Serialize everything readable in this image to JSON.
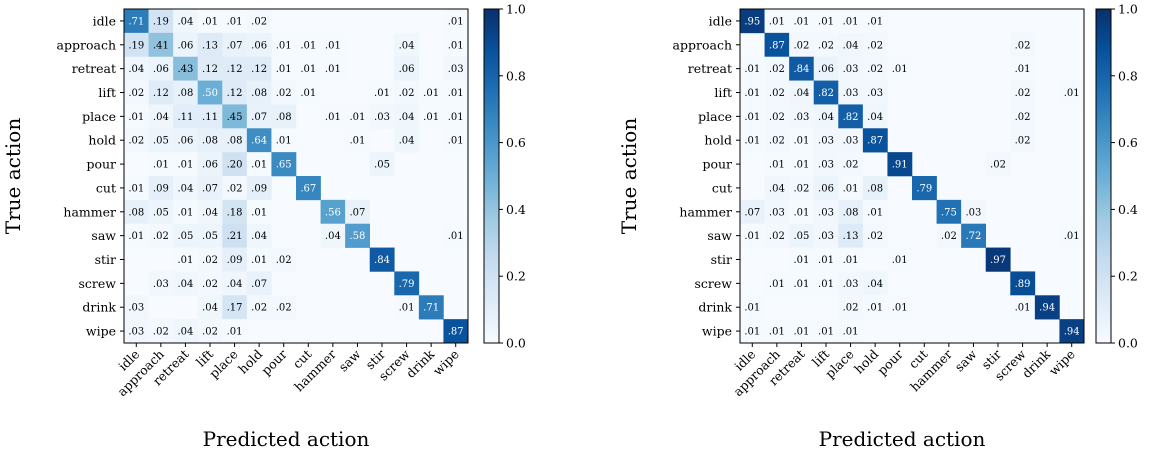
{
  "chart_data": [
    {
      "type": "heatmap",
      "xlabel": "Predicted action",
      "ylabel": "True action",
      "labels": [
        "idle",
        "approach",
        "retreat",
        "lift",
        "place",
        "hold",
        "pour",
        "cut",
        "hammer",
        "saw",
        "stir",
        "screw",
        "drink",
        "wipe"
      ],
      "colorbar": {
        "ticks": [
          "0.0",
          "0.2",
          "0.4",
          "0.6",
          "0.8",
          "1.0"
        ],
        "range": [
          0,
          1
        ],
        "colormap": "Blues"
      },
      "matrix": [
        [
          0.71,
          0.19,
          0.04,
          0.01,
          0.01,
          0.02,
          null,
          null,
          null,
          null,
          null,
          null,
          null,
          0.01
        ],
        [
          0.19,
          0.41,
          0.06,
          0.13,
          0.07,
          0.06,
          0.01,
          0.01,
          0.01,
          null,
          null,
          0.04,
          null,
          0.01
        ],
        [
          0.04,
          0.06,
          0.43,
          0.12,
          0.12,
          0.12,
          0.01,
          0.01,
          0.01,
          null,
          null,
          0.06,
          null,
          0.03
        ],
        [
          0.02,
          0.12,
          0.08,
          0.5,
          0.12,
          0.08,
          0.02,
          0.01,
          null,
          null,
          0.01,
          0.02,
          0.01,
          0.01
        ],
        [
          0.01,
          0.04,
          0.11,
          0.11,
          0.45,
          0.07,
          0.08,
          null,
          0.01,
          0.01,
          0.03,
          0.04,
          0.01,
          0.01
        ],
        [
          0.02,
          0.05,
          0.06,
          0.08,
          0.08,
          0.64,
          0.01,
          null,
          null,
          0.01,
          null,
          0.04,
          null,
          0.01
        ],
        [
          null,
          0.01,
          0.01,
          0.06,
          0.2,
          0.01,
          0.65,
          null,
          null,
          null,
          0.05,
          null,
          null,
          null
        ],
        [
          0.01,
          0.09,
          0.04,
          0.07,
          0.02,
          0.09,
          null,
          0.67,
          null,
          null,
          null,
          null,
          null,
          null
        ],
        [
          0.08,
          0.05,
          0.01,
          0.04,
          0.18,
          0.01,
          null,
          null,
          0.56,
          0.07,
          null,
          null,
          null,
          null
        ],
        [
          0.01,
          0.02,
          0.05,
          0.05,
          0.21,
          0.04,
          null,
          null,
          0.04,
          0.58,
          null,
          null,
          null,
          0.01
        ],
        [
          null,
          null,
          0.01,
          0.02,
          0.09,
          0.01,
          0.02,
          null,
          null,
          null,
          0.84,
          null,
          null,
          null
        ],
        [
          null,
          0.03,
          0.04,
          0.02,
          0.04,
          0.07,
          null,
          null,
          null,
          null,
          null,
          0.79,
          null,
          null
        ],
        [
          0.03,
          null,
          null,
          0.04,
          0.17,
          0.02,
          0.02,
          null,
          null,
          null,
          null,
          0.01,
          0.71,
          null
        ],
        [
          0.03,
          0.02,
          0.04,
          0.02,
          0.01,
          null,
          null,
          null,
          null,
          null,
          null,
          null,
          null,
          0.87
        ]
      ],
      "cell_labels": [
        [
          ".71",
          ".19",
          ".04",
          ".01",
          ".01",
          ".02",
          "",
          "",
          "",
          "",
          "",
          "",
          "",
          ".01"
        ],
        [
          ".19",
          ".41",
          ".06",
          ".13",
          ".07",
          ".06",
          ".01",
          ".01",
          ".01",
          "",
          "",
          ".04",
          "",
          ".01"
        ],
        [
          ".04",
          ".06",
          ".43",
          ".12",
          ".12",
          ".12",
          ".01",
          ".01",
          ".01",
          "",
          "",
          ".06",
          "",
          ".03"
        ],
        [
          ".02",
          ".12",
          ".08",
          ".50",
          ".12",
          ".08",
          ".02",
          ".01",
          "",
          "",
          ".01",
          ".02",
          ".01",
          ".01"
        ],
        [
          ".01",
          ".04",
          ".11",
          ".11",
          ".45",
          ".07",
          ".08",
          "",
          ".01",
          ".01",
          ".03",
          ".04",
          ".01",
          ".01"
        ],
        [
          ".02",
          ".05",
          ".06",
          ".08",
          ".08",
          ".64",
          ".01",
          "",
          "",
          ".01",
          "",
          ".04",
          "",
          ".01"
        ],
        [
          "",
          ".01",
          ".01",
          ".06",
          ".20",
          ".01",
          ".65",
          "",
          "",
          "",
          ".05",
          "",
          "",
          ""
        ],
        [
          ".01",
          ".09",
          ".04",
          ".07",
          ".02",
          ".09",
          "",
          ".67",
          "",
          "",
          "",
          "",
          "",
          ""
        ],
        [
          ".08",
          ".05",
          ".01",
          ".04",
          ".18",
          ".01",
          "",
          "",
          ".56",
          ".07",
          "",
          "",
          "",
          ""
        ],
        [
          ".01",
          ".02",
          ".05",
          ".05",
          ".21",
          ".04",
          "",
          "",
          ".04",
          ".58",
          "",
          "",
          "",
          ".01"
        ],
        [
          "",
          "",
          ".01",
          ".02",
          ".09",
          ".01",
          ".02",
          "",
          "",
          "",
          ".84",
          "",
          "",
          ""
        ],
        [
          "",
          ".03",
          ".04",
          ".02",
          ".04",
          ".07",
          "",
          "",
          "",
          "",
          "",
          ".79",
          "",
          ""
        ],
        [
          ".03",
          "",
          "",
          ".04",
          ".17",
          ".02",
          ".02",
          "",
          "",
          "",
          "",
          ".01",
          ".71",
          ""
        ],
        [
          ".03",
          ".02",
          ".04",
          ".02",
          ".01",
          "",
          "",
          "",
          "",
          "",
          "",
          "",
          "",
          ".87"
        ]
      ]
    },
    {
      "type": "heatmap",
      "xlabel": "Predicted action",
      "ylabel": "True action",
      "labels": [
        "idle",
        "approach",
        "retreat",
        "lift",
        "place",
        "hold",
        "pour",
        "cut",
        "hammer",
        "saw",
        "stir",
        "screw",
        "drink",
        "wipe"
      ],
      "colorbar": {
        "ticks": [
          "0.0",
          "0.2",
          "0.4",
          "0.6",
          "0.8",
          "1.0"
        ],
        "range": [
          0,
          1
        ],
        "colormap": "Blues"
      },
      "matrix": [
        [
          0.95,
          0.01,
          0.01,
          0.01,
          0.01,
          0.01,
          null,
          null,
          null,
          null,
          null,
          null,
          null,
          null
        ],
        [
          null,
          0.87,
          0.02,
          0.02,
          0.04,
          0.02,
          null,
          null,
          null,
          null,
          null,
          0.02,
          null,
          null
        ],
        [
          0.01,
          0.02,
          0.84,
          0.06,
          0.03,
          0.02,
          0.01,
          null,
          null,
          null,
          null,
          0.01,
          null,
          null
        ],
        [
          0.01,
          0.02,
          0.04,
          0.82,
          0.03,
          0.03,
          null,
          null,
          null,
          null,
          null,
          0.02,
          null,
          0.01
        ],
        [
          0.01,
          0.02,
          0.03,
          0.04,
          0.82,
          0.04,
          null,
          null,
          null,
          null,
          null,
          0.02,
          null,
          null
        ],
        [
          0.01,
          0.02,
          0.01,
          0.03,
          0.03,
          0.87,
          null,
          null,
          null,
          null,
          null,
          0.02,
          null,
          null
        ],
        [
          null,
          0.01,
          0.01,
          0.03,
          0.02,
          null,
          0.91,
          null,
          null,
          null,
          0.02,
          null,
          null,
          null
        ],
        [
          null,
          0.04,
          0.02,
          0.06,
          0.01,
          0.08,
          null,
          0.79,
          null,
          null,
          null,
          null,
          null,
          null
        ],
        [
          0.07,
          0.03,
          0.01,
          0.03,
          0.08,
          0.01,
          null,
          null,
          0.75,
          0.03,
          null,
          null,
          null,
          null
        ],
        [
          0.01,
          0.02,
          0.05,
          0.03,
          0.13,
          0.02,
          null,
          null,
          0.02,
          0.72,
          null,
          null,
          null,
          0.01
        ],
        [
          null,
          null,
          0.01,
          0.01,
          0.01,
          null,
          0.01,
          null,
          null,
          null,
          0.97,
          null,
          null,
          null
        ],
        [
          null,
          0.01,
          0.01,
          0.01,
          0.03,
          0.04,
          null,
          null,
          null,
          null,
          null,
          0.89,
          null,
          null
        ],
        [
          0.01,
          null,
          null,
          null,
          0.02,
          0.01,
          0.01,
          null,
          null,
          null,
          null,
          0.01,
          0.94,
          null
        ],
        [
          0.01,
          0.01,
          0.01,
          0.01,
          0.01,
          null,
          null,
          null,
          null,
          null,
          null,
          null,
          null,
          0.94
        ]
      ],
      "cell_labels": [
        [
          ".95",
          ".01",
          ".01",
          ".01",
          ".01",
          ".01",
          "",
          "",
          "",
          "",
          "",
          "",
          "",
          ""
        ],
        [
          "",
          ".87",
          ".02",
          ".02",
          ".04",
          ".02",
          "",
          "",
          "",
          "",
          "",
          ".02",
          "",
          ""
        ],
        [
          ".01",
          ".02",
          ".84",
          ".06",
          ".03",
          ".02",
          ".01",
          "",
          "",
          "",
          "",
          ".01",
          "",
          ""
        ],
        [
          ".01",
          ".02",
          ".04",
          ".82",
          ".03",
          ".03",
          "",
          "",
          "",
          "",
          "",
          ".02",
          "",
          ".01"
        ],
        [
          ".01",
          ".02",
          ".03",
          ".04",
          ".82",
          ".04",
          "",
          "",
          "",
          "",
          "",
          ".02",
          "",
          ""
        ],
        [
          ".01",
          ".02",
          ".01",
          ".03",
          ".03",
          ".87",
          "",
          "",
          "",
          "",
          "",
          ".02",
          "",
          ""
        ],
        [
          "",
          ".01",
          ".01",
          ".03",
          ".02",
          "",
          ".91",
          "",
          "",
          "",
          ".02",
          "",
          "",
          ""
        ],
        [
          "",
          ".04",
          ".02",
          ".06",
          ".01",
          ".08",
          "",
          ".79",
          "",
          "",
          "",
          "",
          "",
          ""
        ],
        [
          ".07",
          ".03",
          ".01",
          ".03",
          ".08",
          ".01",
          "",
          "",
          ".75",
          ".03",
          "",
          "",
          "",
          ""
        ],
        [
          ".01",
          ".02",
          ".05",
          ".03",
          ".13",
          ".02",
          "",
          "",
          ".02",
          ".72",
          "",
          "",
          "",
          ".01"
        ],
        [
          "",
          "",
          ".01",
          ".01",
          ".01",
          "",
          ".01",
          "",
          "",
          "",
          ".97",
          "",
          "",
          ""
        ],
        [
          "",
          ".01",
          ".01",
          ".01",
          ".03",
          ".04",
          "",
          "",
          "",
          "",
          "",
          ".89",
          "",
          ""
        ],
        [
          ".01",
          "",
          "",
          "",
          ".02",
          ".01",
          ".01",
          "",
          "",
          "",
          "",
          ".01",
          ".94",
          ""
        ],
        [
          ".01",
          ".01",
          ".01",
          ".01",
          ".01",
          "",
          "",
          "",
          "",
          "",
          "",
          "",
          "",
          ".94"
        ]
      ]
    }
  ]
}
